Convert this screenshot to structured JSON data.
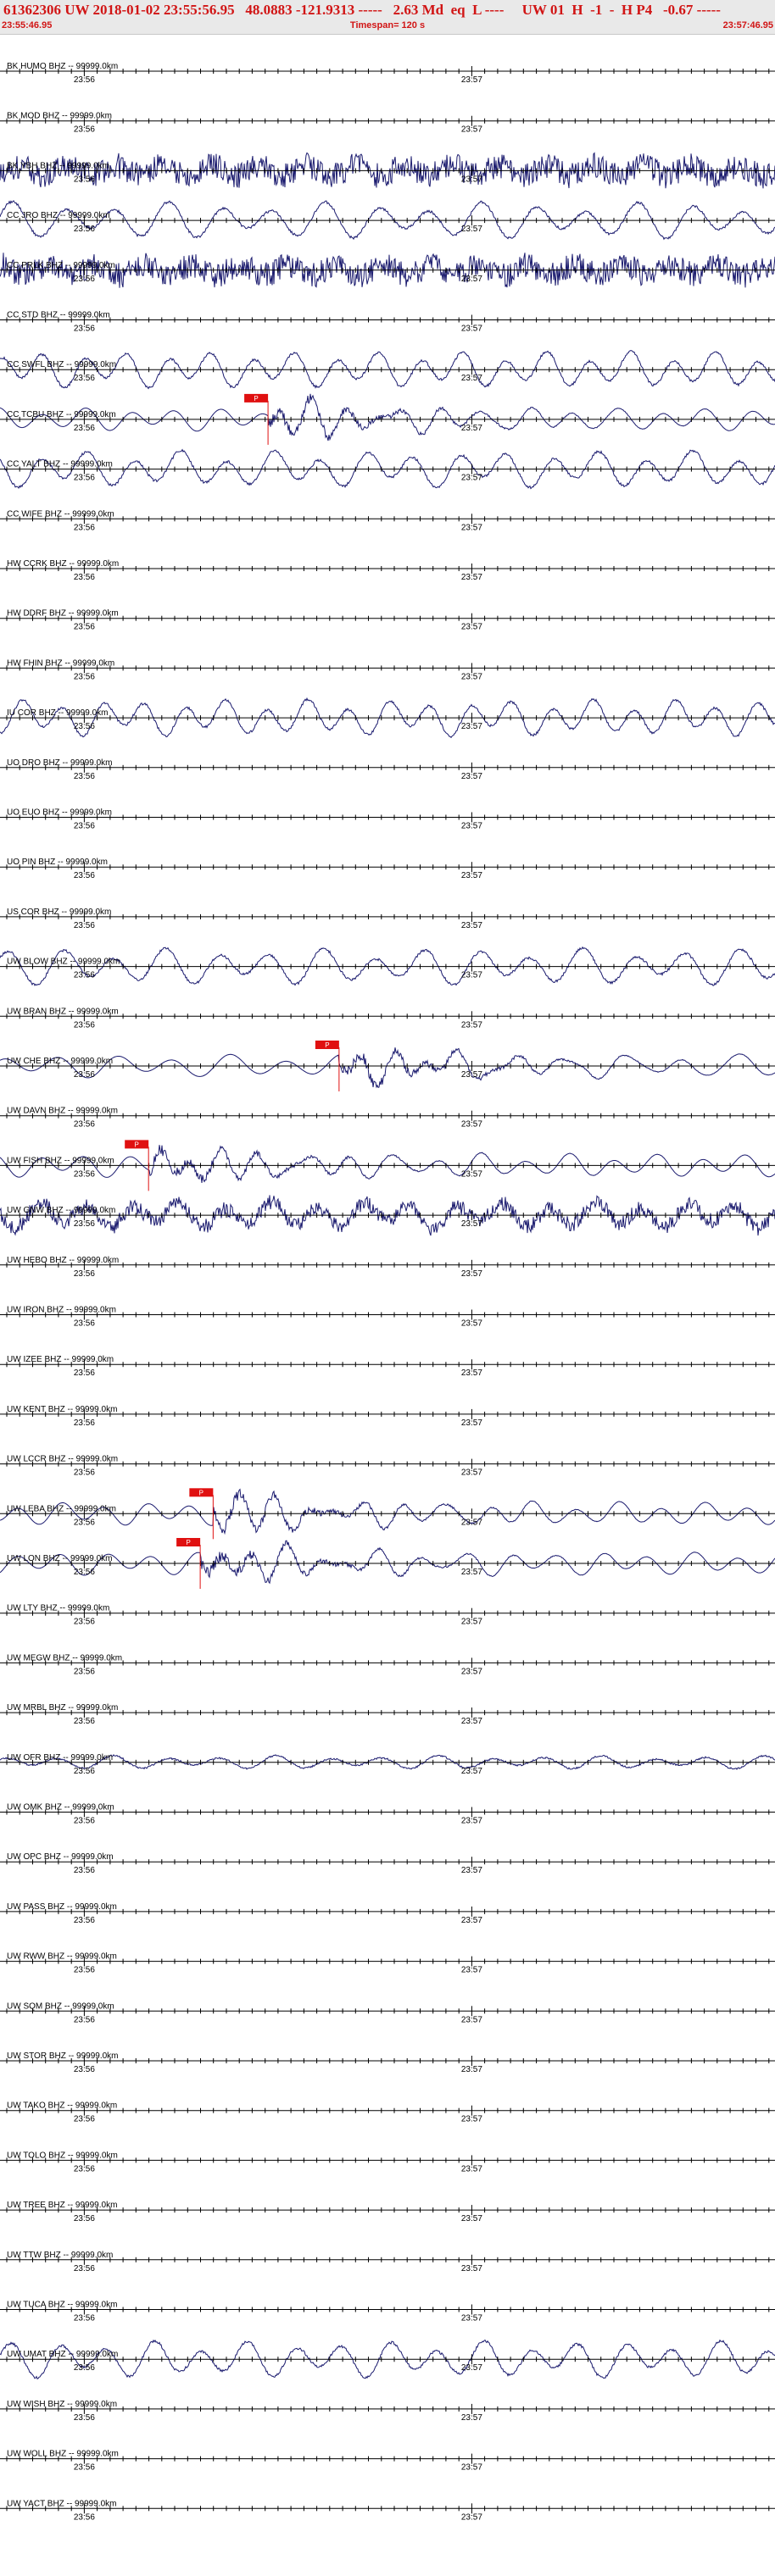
{
  "header": {
    "line": "61362306 UW 2018-01-02 23:55:56.95   48.0883 -121.9313 -----   2.63 Md  eq  L ----     UW 01  H  -1  -  H P4   -0.67 -----",
    "start_time": "23:55:46.95",
    "timespan": "Timespan= 120 s",
    "end_time": "23:57:46.95"
  },
  "colors": {
    "header_text": "#d11515",
    "trace": "#1a1a6e",
    "pick": "#e01010",
    "axis": "#000000",
    "header_bg": "#e9e9e9"
  },
  "chart_data": {
    "type": "line",
    "title": "",
    "x_range_s": [
      0,
      120
    ],
    "tick_labels": [
      "23:56",
      "23:57"
    ],
    "tick_seconds": [
      13.05,
      73.05
    ],
    "channels": [
      {
        "label": "BK HUMO BHZ -- 99999.0km",
        "signal": "none"
      },
      {
        "label": "BK MOD BHZ -- 99999.0km",
        "signal": "none"
      },
      {
        "label": "BK YBH BHZ -- 99999.0km",
        "signal": "noise"
      },
      {
        "label": "CC JRO BHZ -- 99999.0km",
        "signal": "wave"
      },
      {
        "label": "CC PRLK BHZ -- 99999.0km",
        "signal": "noise"
      },
      {
        "label": "CC STD BHZ -- 99999.0km",
        "signal": "none"
      },
      {
        "label": "CC SWFL BHZ -- 99999.0km",
        "signal": "wave"
      },
      {
        "label": "CC TCBU BHZ -- 99999.0km",
        "signal": "event",
        "pick": "P",
        "pick_s": 41.5
      },
      {
        "label": "CC YALT BHZ -- 99999.0km",
        "signal": "wave"
      },
      {
        "label": "CC WIFE BHZ -- 99999.0km",
        "signal": "none"
      },
      {
        "label": "HW CCRK BHZ -- 99999.0km",
        "signal": "none"
      },
      {
        "label": "HW DDRF BHZ -- 99999.0km",
        "signal": "none"
      },
      {
        "label": "HW FHIN BHZ -- 99999.0km",
        "signal": "none"
      },
      {
        "label": "IU COR BHZ -- 99999.0km",
        "signal": "wave"
      },
      {
        "label": "UO DRO BHZ -- 99999.0km",
        "signal": "none"
      },
      {
        "label": "UO EUO BHZ -- 99999.0km",
        "signal": "none"
      },
      {
        "label": "UO PIN BHZ -- 99999.0km",
        "signal": "none"
      },
      {
        "label": "US COR BHZ -- 99999.0km",
        "signal": "none"
      },
      {
        "label": "UW BLOW BHZ -- 99999.0km",
        "signal": "wave"
      },
      {
        "label": "UW BRAN BHZ -- 99999.0km",
        "signal": "none"
      },
      {
        "label": "UW CHE BHZ -- 99999.0km",
        "signal": "event",
        "pick": "P",
        "pick_s": 52.5
      },
      {
        "label": "UW DAVN BHZ -- 99999.0km",
        "signal": "none"
      },
      {
        "label": "UW FISH BHZ -- 99999.0km",
        "signal": "event",
        "pick": "P",
        "pick_s": 23.0
      },
      {
        "label": "UW GNW BHZ -- 99999.0km",
        "signal": "noisewave"
      },
      {
        "label": "UW HEBO BHZ -- 99999.0km",
        "signal": "none"
      },
      {
        "label": "UW IRON BHZ -- 99999.0km",
        "signal": "none"
      },
      {
        "label": "UW IZEE BHZ -- 99999.0km",
        "signal": "none"
      },
      {
        "label": "UW KENT BHZ -- 99999.0km",
        "signal": "none"
      },
      {
        "label": "UW LCCR BHZ -- 99999.0km",
        "signal": "none"
      },
      {
        "label": "UW LEBA BHZ -- 99999.0km",
        "signal": "event",
        "pick": "P",
        "pick_s": 33.0
      },
      {
        "label": "UW LON BHZ -- 99999.0km",
        "signal": "event",
        "pick": "P",
        "pick_s": 31.0
      },
      {
        "label": "UW LTY BHZ -- 99999.0km",
        "signal": "none"
      },
      {
        "label": "UW MEGW BHZ -- 99999.0km",
        "signal": "none"
      },
      {
        "label": "UW MRBL BHZ -- 99999.0km",
        "signal": "none"
      },
      {
        "label": "UW OFR BHZ -- 99999.0km",
        "signal": "small"
      },
      {
        "label": "UW OMK BHZ -- 99999.0km",
        "signal": "none"
      },
      {
        "label": "UW OPC BHZ -- 99999.0km",
        "signal": "none"
      },
      {
        "label": "UW PASS BHZ -- 99999.0km",
        "signal": "none"
      },
      {
        "label": "UW RWW BHZ -- 99999.0km",
        "signal": "none"
      },
      {
        "label": "UW SQM BHZ -- 99999.0km",
        "signal": "none"
      },
      {
        "label": "UW STOR BHZ -- 99999.0km",
        "signal": "none"
      },
      {
        "label": "UW TAKO BHZ -- 99999.0km",
        "signal": "none"
      },
      {
        "label": "UW TOLO BHZ -- 99999.0km",
        "signal": "none"
      },
      {
        "label": "UW TREE BHZ -- 99999.0km",
        "signal": "none"
      },
      {
        "label": "UW TTW BHZ -- 99999.0km",
        "signal": "none"
      },
      {
        "label": "UW TUCA BHZ -- 99999.0km",
        "signal": "none"
      },
      {
        "label": "UW UMAT BHZ -- 99999.0km",
        "signal": "wave"
      },
      {
        "label": "UW WISH BHZ -- 99999.0km",
        "signal": "none"
      },
      {
        "label": "UW WOLL BHZ -- 99999.0km",
        "signal": "none"
      },
      {
        "label": "UW YACT BHZ -- 99999.0km",
        "signal": "none"
      }
    ]
  }
}
